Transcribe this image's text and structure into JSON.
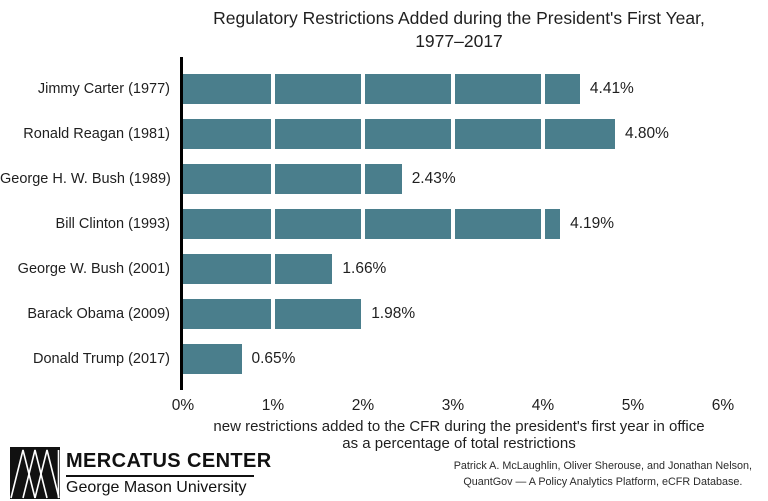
{
  "title": {
    "line1": "Regulatory Restrictions Added during the President's First Year,",
    "line2": "1977–2017"
  },
  "chart_data": {
    "type": "bar",
    "orientation": "horizontal",
    "title": "Regulatory Restrictions Added during the President's First Year, 1977–2017",
    "categories": [
      "Jimmy Carter (1977)",
      "Ronald Reagan (1981)",
      "George H. W. Bush (1989)",
      "Bill Clinton (1993)",
      "George W. Bush (2001)",
      "Barack Obama (2009)",
      "Donald Trump (2017)"
    ],
    "values": [
      4.41,
      4.8,
      2.43,
      4.19,
      1.66,
      1.98,
      0.65
    ],
    "value_labels": [
      "4.41%",
      "4.80%",
      "2.43%",
      "4.19%",
      "1.66%",
      "1.98%",
      "0.65%"
    ],
    "xticks": [
      "0%",
      "1%",
      "2%",
      "3%",
      "4%",
      "5%",
      "6%"
    ],
    "xtick_values": [
      0,
      1,
      2,
      3,
      4,
      5,
      6
    ],
    "xlim": [
      0,
      6
    ],
    "xlabel_line1": "new restrictions added to the CFR during the president's first year in office",
    "xlabel_line2": "as a percentage of total restrictions",
    "bar_color": "#4A7E8C",
    "axis_color": "#000000",
    "gridline_color": "#FFFFFF",
    "legend_position": "none",
    "grid": "white vertical gridlines across bars at each 1% interval"
  },
  "footer": {
    "logo_text": "MERCATUS CENTER",
    "logo_subtext": "George Mason University",
    "attribution_line1": "Patrick A. McLaughlin, Oliver Sherouse, and Jonathan Nelson,",
    "attribution_line2": "QuantGov — A Policy Analytics Platform, eCFR Database."
  }
}
